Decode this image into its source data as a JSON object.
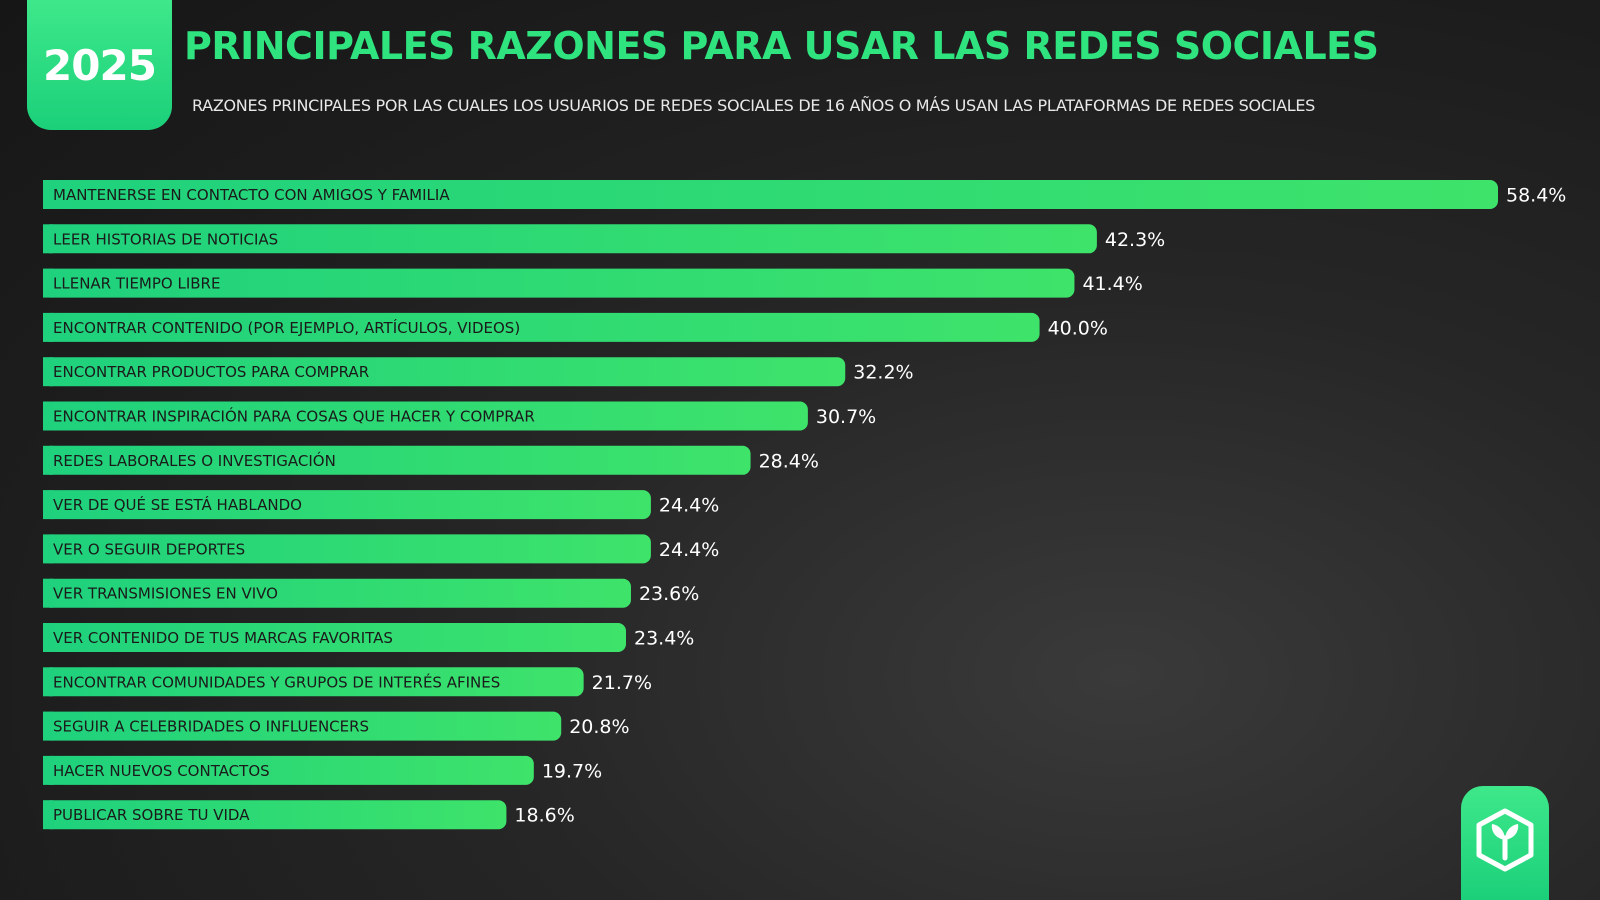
{
  "header": {
    "year": "2025",
    "title": "PRINCIPALES RAZONES PARA USAR LAS REDES SOCIALES",
    "subtitle": "RAZONES PRINCIPALES POR LAS CUALES LOS USUARIOS DE REDES SOCIALES DE 16 AÑOS O MÁS USAN LAS PLATAFORMAS DE REDES SOCIALES"
  },
  "colors": {
    "accent": "#2fe37f",
    "bar_start": "#1fd17d",
    "bar_end": "#3ee36a",
    "background": "#1c1c1c"
  },
  "logo": {
    "icon": "sprout-hexagon-icon"
  },
  "chart_data": {
    "type": "bar",
    "orientation": "horizontal",
    "value_suffix": "%",
    "categories": [
      "MANTENERSE EN CONTACTO CON AMIGOS Y FAMILIA",
      "LEER HISTORIAS DE NOTICIAS",
      "LLENAR TIEMPO LIBRE",
      "ENCONTRAR CONTENIDO (POR EJEMPLO, ARTÍCULOS, VIDEOS)",
      "ENCONTRAR PRODUCTOS PARA COMPRAR",
      "ENCONTRAR INSPIRACIÓN PARA COSAS QUE HACER Y COMPRAR",
      "REDES LABORALES O INVESTIGACIÓN",
      "VER DE QUÉ SE ESTÁ HABLANDO",
      "VER O SEGUIR DEPORTES",
      "VER TRANSMISIONES EN VIVO",
      "VER CONTENIDO DE TUS MARCAS FAVORITAS",
      "ENCONTRAR COMUNIDADES Y GRUPOS DE INTERÉS AFINES",
      "SEGUIR A CELEBRIDADES O INFLUENCERS",
      "HACER NUEVOS CONTACTOS",
      "PUBLICAR SOBRE TU VIDA"
    ],
    "values": [
      58.4,
      42.3,
      41.4,
      40.0,
      32.2,
      30.7,
      28.4,
      24.4,
      24.4,
      23.6,
      23.4,
      21.7,
      20.8,
      19.7,
      18.6
    ],
    "value_labels": [
      "58.4%",
      "42.3%",
      "41.4%",
      "40.0%",
      "32.2%",
      "30.7%",
      "28.4%",
      "24.4%",
      "24.4%",
      "23.6%",
      "23.4%",
      "21.7%",
      "20.8%",
      "19.7%",
      "18.6%"
    ],
    "xlim": [
      0,
      58.4
    ],
    "grid": false,
    "legend": "none"
  }
}
